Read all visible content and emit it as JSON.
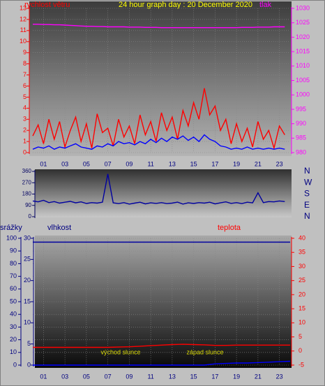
{
  "chart_data": [
    {
      "type": "line",
      "title": "24 hour graph day : 20 December 2020",
      "ylabel": "rychlost větru",
      "y2label": "tlak",
      "x": [
        0,
        0.5,
        1,
        1.5,
        2,
        2.5,
        3,
        3.5,
        4,
        4.5,
        5,
        5.5,
        6,
        6.5,
        7,
        7.5,
        8,
        8.5,
        9,
        9.5,
        10,
        10.5,
        11,
        11.5,
        12,
        12.5,
        13,
        13.5,
        14,
        14.5,
        15,
        15.5,
        16,
        16.5,
        17,
        17.5,
        18,
        18.5,
        19,
        19.5,
        20,
        20.5,
        21,
        21.5,
        22,
        22.5,
        23,
        23.5
      ],
      "xlim": [
        0,
        24
      ],
      "xticks": [
        {
          "value": 1,
          "label": "01"
        },
        {
          "value": 3,
          "label": "03"
        },
        {
          "value": 5,
          "label": "05"
        },
        {
          "value": 7,
          "label": "07"
        },
        {
          "value": 9,
          "label": "09"
        },
        11,
        13,
        15,
        17,
        19,
        21,
        23
      ],
      "ylim": [
        0,
        13
      ],
      "yticks": [
        0,
        1,
        2,
        3,
        4,
        5,
        6,
        7,
        8,
        9,
        10,
        11,
        12,
        13
      ],
      "y2lim": [
        980,
        1030
      ],
      "y2ticks": [
        980,
        985,
        990,
        995,
        1000,
        1005,
        1010,
        1015,
        1020,
        1025,
        1030
      ],
      "grid": true,
      "series": [
        {
          "color": "#ff0000",
          "values": [
            1.5,
            2.5,
            0.8,
            3.0,
            1.2,
            2.8,
            0.5,
            2.0,
            3.2,
            1.0,
            2.6,
            0.4,
            3.5,
            1.8,
            2.2,
            0.6,
            3.0,
            1.4,
            2.4,
            0.8,
            3.4,
            1.6,
            2.8,
            1.0,
            3.6,
            2.0,
            3.2,
            1.2,
            3.8,
            2.4,
            4.5,
            3.0,
            5.8,
            3.4,
            4.2,
            2.0,
            3.0,
            0.8,
            2.6,
            1.0,
            2.2,
            0.5,
            2.8,
            1.2,
            2.0,
            0.4,
            2.4,
            1.6
          ]
        },
        {
          "color": "#0000ff",
          "values": [
            0.3,
            0.5,
            0.4,
            0.6,
            0.3,
            0.5,
            0.4,
            0.6,
            0.8,
            0.5,
            0.4,
            0.3,
            0.6,
            0.5,
            0.8,
            0.6,
            1.0,
            0.8,
            0.9,
            0.7,
            1.0,
            0.8,
            1.2,
            0.9,
            1.3,
            1.0,
            1.4,
            1.2,
            1.5,
            1.1,
            1.4,
            1.0,
            1.6,
            1.2,
            1.0,
            0.6,
            0.5,
            0.3,
            0.4,
            0.3,
            0.5,
            0.3,
            0.4,
            0.3,
            0.4,
            0.3,
            0.4,
            0.3
          ]
        },
        {
          "color": "#ff00ff",
          "axis": "y2",
          "values": [
            1024.5,
            1024.5,
            1024.4,
            1024.4,
            1024.3,
            1024.3,
            1024.2,
            1024.1,
            1024.0,
            1023.9,
            1023.8,
            1023.8,
            1023.7,
            1023.7,
            1023.6,
            1023.6,
            1023.6,
            1023.6,
            1023.5,
            1023.5,
            1023.5,
            1023.4,
            1023.4,
            1023.4,
            1023.3,
            1023.3,
            1023.3,
            1023.3,
            1023.3,
            1023.3,
            1023.3,
            1023.3,
            1023.3,
            1023.3,
            1023.3,
            1023.3,
            1023.3,
            1023.3,
            1023.3,
            1023.4,
            1023.4,
            1023.4,
            1023.5,
            1023.5,
            1023.5,
            1023.6,
            1023.6,
            1023.6
          ]
        }
      ]
    },
    {
      "type": "line",
      "x": [
        0,
        0.5,
        1,
        1.5,
        2,
        2.5,
        3,
        3.5,
        4,
        4.5,
        5,
        5.5,
        6,
        6.5,
        7,
        7.5,
        8,
        8.5,
        9,
        9.5,
        10,
        10.5,
        11,
        11.5,
        12,
        12.5,
        13,
        13.5,
        14,
        14.5,
        15,
        15.5,
        16,
        16.5,
        17,
        17.5,
        18,
        18.5,
        19,
        19.5,
        20,
        20.5,
        21,
        21.5,
        22,
        22.5,
        23,
        23.5
      ],
      "xlim": [
        0,
        24
      ],
      "ylim": [
        0,
        360
      ],
      "yticks": [
        0,
        90,
        180,
        270,
        360
      ],
      "y2lim": [
        0,
        360
      ],
      "y2ticks": [
        {
          "value": 0,
          "label": "N"
        },
        {
          "value": 90,
          "label": "E"
        },
        {
          "value": 180,
          "label": "S"
        },
        {
          "value": 270,
          "label": "W"
        },
        {
          "value": 360,
          "label": "N"
        }
      ],
      "series": [
        {
          "color": "#0000a0",
          "values": [
            125,
            118,
            130,
            112,
            120,
            108,
            115,
            122,
            110,
            118,
            105,
            112,
            108,
            115,
            340,
            110,
            104,
            112,
            100,
            108,
            115,
            102,
            110,
            106,
            112,
            104,
            108,
            116,
            100,
            110,
            105,
            112,
            108,
            115,
            102,
            110,
            118,
            106,
            112,
            104,
            115,
            110,
            190,
            112,
            120,
            118,
            125,
            120
          ]
        }
      ]
    },
    {
      "type": "line",
      "ylabel": "vlhkost",
      "y3label": "srážky",
      "y2label": "teplota",
      "annotations": [
        "východ slunce",
        "západ slunce"
      ],
      "x": [
        0,
        1,
        2,
        3,
        4,
        5,
        6,
        7,
        8,
        9,
        10,
        11,
        12,
        13,
        14,
        15,
        16,
        17,
        18,
        19,
        20,
        21,
        22,
        23,
        24
      ],
      "xlim": [
        0,
        24
      ],
      "xticks": [
        {
          "value": 1,
          "label": "01"
        },
        {
          "value": 3,
          "label": "03"
        },
        {
          "value": 5,
          "label": "05"
        },
        {
          "value": 7,
          "label": "07"
        },
        {
          "value": 9,
          "label": "09"
        },
        11,
        13,
        15,
        17,
        19,
        21,
        23
      ],
      "ylim": [
        0,
        100
      ],
      "yticks": [
        0,
        10,
        20,
        30,
        40,
        50,
        60,
        70,
        80,
        90,
        100
      ],
      "y3lim": [
        0,
        30
      ],
      "y3ticks": [
        0,
        5,
        10,
        15,
        20,
        25,
        30
      ],
      "y2lim": [
        -5,
        40
      ],
      "y2ticks": [
        -5,
        0,
        5,
        10,
        15,
        20,
        25,
        30,
        35,
        40
      ],
      "series": [
        {
          "color": "#0000a0",
          "values": [
            97,
            97,
            97,
            97,
            97,
            97,
            97,
            97,
            97,
            97,
            97,
            97,
            97,
            97,
            97,
            97,
            97,
            97,
            97,
            97,
            97,
            97,
            97,
            97,
            97
          ]
        },
        {
          "color": "#ff0000",
          "axis": "y2",
          "values": [
            1.3,
            1.3,
            1.3,
            1.3,
            1.3,
            1.3,
            1.3,
            1.3,
            1.4,
            1.5,
            1.7,
            1.9,
            2.1,
            2.3,
            2.4,
            2.3,
            2.2,
            2.0,
            2.0,
            2.1,
            2.1,
            2.1,
            2.1,
            2.1,
            2.1
          ]
        },
        {
          "color": "#0000ff",
          "axis": "y3",
          "values": [
            0,
            0,
            0,
            0,
            0,
            0,
            0,
            0,
            0,
            0,
            0,
            0,
            0,
            0,
            0,
            0,
            0,
            0.3,
            0.4,
            0.5,
            0.5,
            0.6,
            0.7,
            0.8,
            0.9
          ]
        }
      ]
    }
  ]
}
